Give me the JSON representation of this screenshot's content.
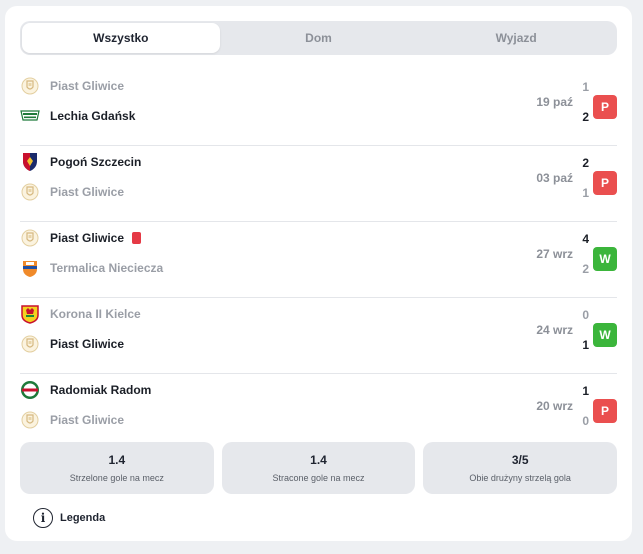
{
  "tabs": [
    {
      "label": "Wszystko",
      "active": true
    },
    {
      "label": "Dom",
      "active": false
    },
    {
      "label": "Wyjazd",
      "active": false
    }
  ],
  "matches": [
    {
      "home": {
        "name": "Piast Gliwice",
        "crest": "piast-gliwice-crest",
        "score": "1",
        "winner": false
      },
      "away": {
        "name": "Lechia Gdańsk",
        "crest": "lechia-gdansk-crest",
        "score": "2",
        "winner": true
      },
      "date": "19 paź",
      "result": "P"
    },
    {
      "home": {
        "name": "Pogoń Szczecin",
        "crest": "pogon-szczecin-crest",
        "score": "2",
        "winner": true
      },
      "away": {
        "name": "Piast Gliwice",
        "crest": "piast-gliwice-crest",
        "score": "1",
        "winner": false
      },
      "date": "03 paź",
      "result": "P"
    },
    {
      "home": {
        "name": "Piast Gliwice",
        "crest": "piast-gliwice-crest",
        "score": "4",
        "winner": true,
        "red_card": true
      },
      "away": {
        "name": "Termalica Nieciecza",
        "crest": "termalica-nieciecza-crest",
        "score": "2",
        "winner": false
      },
      "date": "27 wrz",
      "result": "W"
    },
    {
      "home": {
        "name": "Korona II Kielce",
        "crest": "korona-kielce-crest",
        "score": "0",
        "winner": false
      },
      "away": {
        "name": "Piast Gliwice",
        "crest": "piast-gliwice-crest",
        "score": "1",
        "winner": true
      },
      "date": "24 wrz",
      "result": "W"
    },
    {
      "home": {
        "name": "Radomiak Radom",
        "crest": "radomiak-radom-crest",
        "score": "1",
        "winner": true
      },
      "away": {
        "name": "Piast Gliwice",
        "crest": "piast-gliwice-crest",
        "score": "0",
        "winner": false
      },
      "date": "20 wrz",
      "result": "P"
    }
  ],
  "stats": [
    {
      "value": "1.4",
      "label": "Strzelone gole na mecz"
    },
    {
      "value": "1.4",
      "label": "Stracone gole na mecz"
    },
    {
      "value": "3/5",
      "label": "Obie drużyny strzelą gola"
    }
  ],
  "legend": {
    "label": "Legenda",
    "icon": "info-icon"
  },
  "colors": {
    "loss": "#ea4f4f",
    "win": "#3bb53b",
    "red_card": "#e53945"
  }
}
